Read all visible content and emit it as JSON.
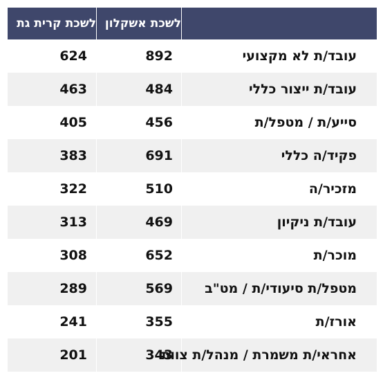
{
  "table": {
    "header": {
      "col_occupation": "",
      "col_jobs": "לשכת אשקלון",
      "col_city": "לשכת קרית גת"
    },
    "rows": [
      {
        "occupation": "עובד/ת לא מקצועי",
        "jobs": "892",
        "city": "624"
      },
      {
        "occupation": "עובד/ת ייצור כללי",
        "jobs": "484",
        "city": "463"
      },
      {
        "occupation": "סייע/ת / מטפל/ת",
        "jobs": "456",
        "city": "405"
      },
      {
        "occupation": "פקיד/ה כללי",
        "jobs": "691",
        "city": "383"
      },
      {
        "occupation": "מזכיר/ה",
        "jobs": "510",
        "city": "322"
      },
      {
        "occupation": "עובד/ת ניקיון",
        "jobs": "469",
        "city": "313"
      },
      {
        "occupation": "מוכר/ת",
        "jobs": "652",
        "city": "308"
      },
      {
        "occupation": "מטפל/ת סיעודי/ת / מט\"ב",
        "jobs": "569",
        "city": "289"
      },
      {
        "occupation": "אורז/ת",
        "jobs": "355",
        "city": "241"
      },
      {
        "occupation": "אחראי/ת משמרת / מנהל/ת צוות",
        "jobs": "343",
        "city": "201"
      }
    ]
  }
}
